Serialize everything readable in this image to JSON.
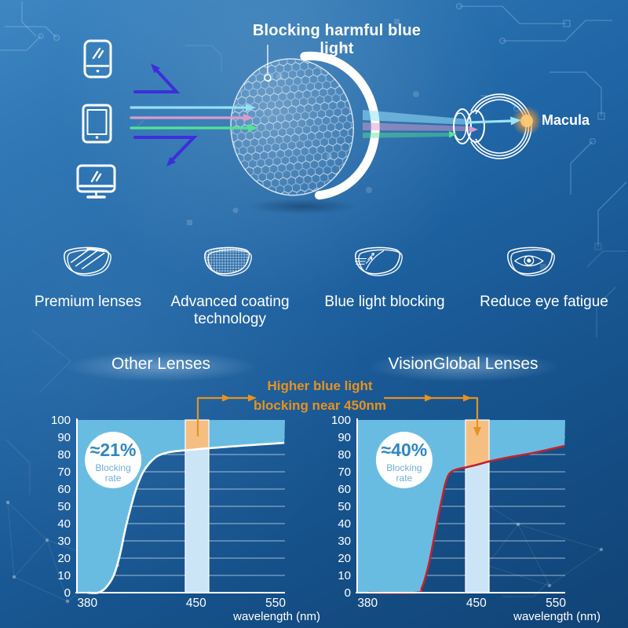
{
  "header": {
    "title": "Blocking harmful blue light",
    "macula_label": "Macula",
    "device_icons": [
      "smartphone-icon",
      "tablet-icon",
      "monitor-icon"
    ],
    "ray_colors": {
      "reflected_blue": "#3D2EDC",
      "cyan_ray": "#92E2F6",
      "pink_ray": "#D89CCC",
      "green_ray": "#52E394",
      "macula_glow": "#F0A041"
    }
  },
  "features": [
    {
      "icon": "premium-lens-icon",
      "lines": [
        "Premium lenses"
      ]
    },
    {
      "icon": "coating-lens-icon",
      "lines": [
        "Advanced coating",
        "technology"
      ]
    },
    {
      "icon": "blue-light-blocking-lens-icon",
      "lines": [
        "Blue light blocking"
      ]
    },
    {
      "icon": "eye-lens-icon",
      "lines": [
        "Reduce eye fatigue"
      ]
    }
  ],
  "annotation": {
    "line1": "Higher blue light",
    "line2": "blocking near 450nm",
    "color": "#E8921F"
  },
  "chart_data": [
    {
      "type": "area",
      "title": "Other Lenses",
      "badge": {
        "value": "≈21%",
        "label_line1": "Blocking",
        "label_line2": "rate",
        "value_color": "#2F86C0",
        "label_color": "#6FAEDB"
      },
      "xlabel": "wavelength (nm)",
      "x_ticks": [
        {
          "value": "380",
          "frac": 0.05
        },
        {
          "value": "450",
          "frac": 0.573
        },
        {
          "value": "550",
          "frac": 0.955
        }
      ],
      "y_ticks": [
        0,
        10,
        20,
        30,
        40,
        50,
        60,
        70,
        80,
        90,
        100
      ],
      "ylim": [
        0,
        100
      ],
      "grid": true,
      "legend": "none",
      "fill_color": "#69BCE1",
      "highlight_band": {
        "x_range": [
          443,
          466
        ],
        "color_below_curve": "#CBE5F6",
        "color_above_curve": "#F6BF82"
      },
      "badge_pos_frac": 0.174,
      "series": [
        {
          "name": "light transmission boundary",
          "color": "#FFFFFF",
          "points": [
            [
              380,
              0
            ],
            [
              387,
              0
            ],
            [
              392,
              3
            ],
            [
              397,
              10
            ],
            [
              401,
              22
            ],
            [
              404,
              35
            ],
            [
              407,
              46
            ],
            [
              410,
              56
            ],
            [
              413,
              64
            ],
            [
              416,
              70
            ],
            [
              420,
              75
            ],
            [
              425,
              79
            ],
            [
              431,
              81
            ],
            [
              438,
              82
            ],
            [
              450,
              83
            ],
            [
              465,
              83.6
            ],
            [
              490,
              84.5
            ],
            [
              520,
              85.5
            ],
            [
              548,
              86.3
            ],
            [
              561,
              86.8
            ]
          ]
        }
      ]
    },
    {
      "type": "area",
      "title": "VisionGlobal Lenses",
      "badge": {
        "value": "≈40%",
        "label_line1": "Blocking",
        "label_line2": "rate",
        "value_color": "#2F86C0",
        "label_color": "#6FAEDB"
      },
      "xlabel": "wavelength (nm)",
      "x_ticks": [
        {
          "value": "380",
          "frac": 0.05
        },
        {
          "value": "450",
          "frac": 0.573
        },
        {
          "value": "550",
          "frac": 0.955
        }
      ],
      "y_ticks": [
        0,
        10,
        20,
        30,
        40,
        50,
        60,
        70,
        80,
        90,
        100
      ],
      "ylim": [
        0,
        100
      ],
      "grid": true,
      "legend": "none",
      "fill_color": "#69BCE1",
      "highlight_band": {
        "x_range": [
          443,
          466
        ],
        "color_below_curve": "#CBE5F6",
        "color_above_curve": "#F6BF82"
      },
      "badge_pos_frac": 0.226,
      "series": [
        {
          "name": "light transmission boundary",
          "color": "#C2222E",
          "points": [
            [
              380,
              0
            ],
            [
              411,
              0
            ],
            [
              415,
              3
            ],
            [
              419,
              15
            ],
            [
              422,
              28
            ],
            [
              425,
              42
            ],
            [
              428,
              55
            ],
            [
              430,
              63
            ],
            [
              432,
              68
            ],
            [
              434,
              70
            ],
            [
              436,
              71
            ],
            [
              440,
              72
            ],
            [
              443,
              72.5
            ],
            [
              450,
              74
            ],
            [
              458,
              75
            ],
            [
              466,
              76
            ],
            [
              492,
              78.5
            ],
            [
              517,
              80.5
            ],
            [
              542,
              83
            ],
            [
              561,
              85
            ]
          ]
        }
      ]
    }
  ]
}
